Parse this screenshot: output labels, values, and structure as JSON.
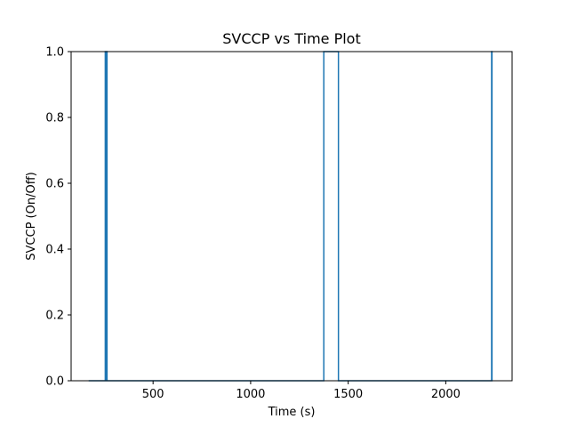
{
  "chart_data": {
    "type": "line",
    "title": "SVCCP vs Time Plot",
    "xlabel": "Time (s)",
    "ylabel": "SVCCP (On/Off)",
    "xlim": [
      80,
      2340
    ],
    "ylim": [
      0.0,
      1.0
    ],
    "x_ticks": [
      500,
      1000,
      1500,
      2000
    ],
    "y_ticks": [
      0.0,
      0.2,
      0.4,
      0.6,
      0.8,
      1.0
    ],
    "y_tick_labels": [
      "0.0",
      "0.2",
      "0.4",
      "0.6",
      "0.8",
      "1.0"
    ],
    "grid": false,
    "series": [
      {
        "color": "#1f77b4",
        "step": true,
        "x": [
          170,
          255,
          257,
          259,
          261,
          262,
          264,
          1375,
          1450,
          2235,
          2237,
          2240
        ],
        "y": [
          0,
          1,
          0,
          1,
          0,
          1,
          0,
          1,
          0,
          1,
          0,
          0
        ]
      }
    ]
  }
}
